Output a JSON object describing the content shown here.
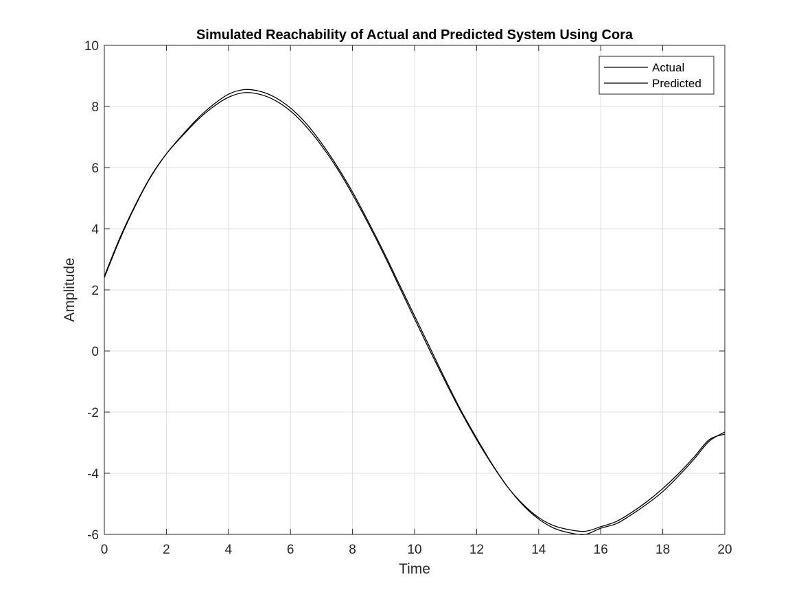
{
  "chart_data": {
    "type": "line",
    "title": "Simulated Reachability of Actual and Predicted System Using Cora",
    "xlabel": "Time",
    "ylabel": "Amplitude",
    "xlim": [
      0,
      20
    ],
    "ylim": [
      -6,
      10
    ],
    "xticks": [
      0,
      2,
      4,
      6,
      8,
      10,
      12,
      14,
      16,
      18,
      20
    ],
    "yticks": [
      -6,
      -4,
      -2,
      0,
      2,
      4,
      6,
      8,
      10
    ],
    "grid": true,
    "legend_position": "top-right",
    "line_color": "#000000",
    "series": [
      {
        "name": "Actual",
        "x": [
          0,
          0.5,
          1,
          1.5,
          2,
          2.5,
          3,
          3.5,
          4,
          4.5,
          5,
          5.5,
          6,
          6.5,
          7,
          7.5,
          8,
          8.5,
          9,
          9.5,
          10,
          10.5,
          11,
          11.5,
          12,
          12.5,
          13,
          13.5,
          14,
          14.5,
          15,
          15.5,
          16,
          16.5,
          17,
          17.5,
          18,
          18.5,
          19,
          19.5,
          20
        ],
        "y": [
          2.4,
          3.65,
          4.75,
          5.7,
          6.45,
          7.05,
          7.6,
          8.05,
          8.4,
          8.55,
          8.5,
          8.3,
          7.95,
          7.45,
          6.8,
          6.05,
          5.2,
          4.25,
          3.25,
          2.2,
          1.15,
          0.1,
          -0.95,
          -1.95,
          -2.85,
          -3.7,
          -4.45,
          -5.05,
          -5.5,
          -5.8,
          -5.95,
          -6.0,
          -5.8,
          -5.65,
          -5.35,
          -5.0,
          -4.6,
          -4.1,
          -3.55,
          -2.95,
          -2.65
        ]
      },
      {
        "name": "Predicted",
        "x": [
          0,
          0.5,
          1,
          1.5,
          2,
          2.5,
          3,
          3.5,
          4,
          4.5,
          5,
          5.5,
          6,
          6.5,
          7,
          7.5,
          8,
          8.5,
          9,
          9.5,
          10,
          10.5,
          11,
          11.5,
          12,
          12.5,
          13,
          13.5,
          14,
          14.5,
          15,
          15.5,
          16,
          16.5,
          17,
          17.5,
          18,
          18.5,
          19,
          19.5,
          20
        ],
        "y": [
          2.45,
          3.7,
          4.78,
          5.72,
          6.45,
          7.02,
          7.55,
          7.98,
          8.3,
          8.45,
          8.4,
          8.2,
          7.85,
          7.35,
          6.72,
          5.98,
          5.12,
          4.18,
          3.18,
          2.12,
          1.05,
          0.0,
          -1.02,
          -2.0,
          -2.9,
          -3.72,
          -4.45,
          -5.02,
          -5.45,
          -5.72,
          -5.85,
          -5.9,
          -5.75,
          -5.58,
          -5.28,
          -4.92,
          -4.5,
          -4.02,
          -3.48,
          -2.9,
          -2.72
        ]
      }
    ]
  }
}
